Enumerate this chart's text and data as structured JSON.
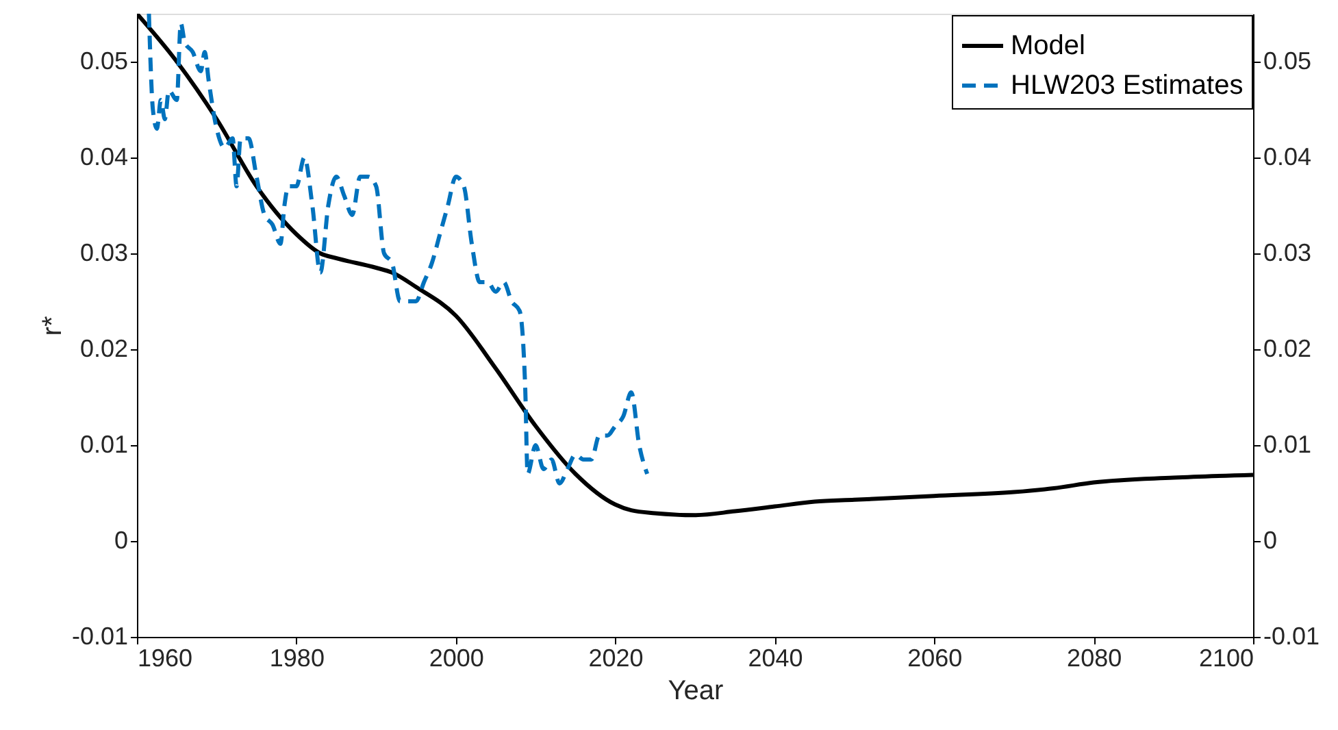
{
  "chart_data": {
    "type": "line",
    "xlabel": "Year",
    "ylabel": "r*",
    "xlim": [
      1960,
      2100
    ],
    "xticks": [
      1960,
      1980,
      2000,
      2020,
      2040,
      2060,
      2080,
      2100
    ],
    "ylim": [
      -0.01,
      0.055
    ],
    "yticks": [
      -0.01,
      0,
      0.01,
      0.02,
      0.03,
      0.04,
      0.05
    ],
    "y2lim": [
      -0.01,
      0.055
    ],
    "y2ticks": [
      -0.01,
      0,
      0.01,
      0.02,
      0.03,
      0.04,
      0.05
    ],
    "grid": false,
    "legend": "top right",
    "marker": "none",
    "series": [
      {
        "name": "Model",
        "color": "#000000",
        "line_style": "solid",
        "x": [
          1960,
          1965,
          1970,
          1975,
          1980,
          1983,
          1985,
          1990,
          1992,
          1995,
          2000,
          2005,
          2010,
          2015,
          2020,
          2022,
          2025,
          2030,
          2035,
          2040,
          2045,
          2050,
          2060,
          2070,
          2075,
          2080,
          2090,
          2100
        ],
        "values": [
          0.055,
          0.05,
          0.044,
          0.037,
          0.032,
          0.03,
          0.0295,
          0.0285,
          0.028,
          0.0265,
          0.0235,
          0.018,
          0.012,
          0.007,
          0.0038,
          0.0032,
          0.0029,
          0.0027,
          0.0031,
          0.0036,
          0.0041,
          0.0043,
          0.0047,
          0.0051,
          0.0055,
          0.0061,
          0.0066,
          0.0069
        ]
      },
      {
        "name": "HLW203 Estimates",
        "color": "#0072bd",
        "line_style": "dashed",
        "x": [
          1961.5,
          1962,
          1962.5,
          1963,
          1963.5,
          1964,
          1965,
          1965.5,
          1966,
          1967,
          1968,
          1968.5,
          1969,
          1970,
          1971,
          1972,
          1972.5,
          1973,
          1974,
          1975,
          1976,
          1977,
          1978,
          1978.5,
          1979,
          1980,
          1981,
          1982,
          1983,
          1984,
          1985,
          1986,
          1987,
          1988,
          1989,
          1990,
          1991,
          1992,
          1993,
          1995,
          1996,
          1997,
          1998,
          1999,
          2000,
          2001,
          2002,
          2003,
          2004,
          2005,
          2006,
          2007,
          2008,
          2008.7,
          2009,
          2010,
          2011,
          2012,
          2013,
          2014,
          2015,
          2016,
          2017,
          2018,
          2019,
          2020,
          2021,
          2022,
          2023,
          2024
        ],
        "values": [
          0.055,
          0.045,
          0.043,
          0.046,
          0.044,
          0.047,
          0.046,
          0.054,
          0.052,
          0.051,
          0.049,
          0.051,
          0.048,
          0.043,
          0.041,
          0.042,
          0.037,
          0.042,
          0.042,
          0.038,
          0.034,
          0.033,
          0.031,
          0.035,
          0.037,
          0.037,
          0.04,
          0.035,
          0.028,
          0.035,
          0.038,
          0.036,
          0.034,
          0.038,
          0.038,
          0.037,
          0.03,
          0.029,
          0.025,
          0.025,
          0.027,
          0.029,
          0.032,
          0.035,
          0.038,
          0.037,
          0.031,
          0.027,
          0.027,
          0.026,
          0.027,
          0.025,
          0.024,
          0.016,
          0.007,
          0.01,
          0.0075,
          0.0085,
          0.006,
          0.0075,
          0.009,
          0.0085,
          0.0085,
          0.011,
          0.011,
          0.012,
          0.013,
          0.0155,
          0.01,
          0.007
        ]
      }
    ]
  }
}
